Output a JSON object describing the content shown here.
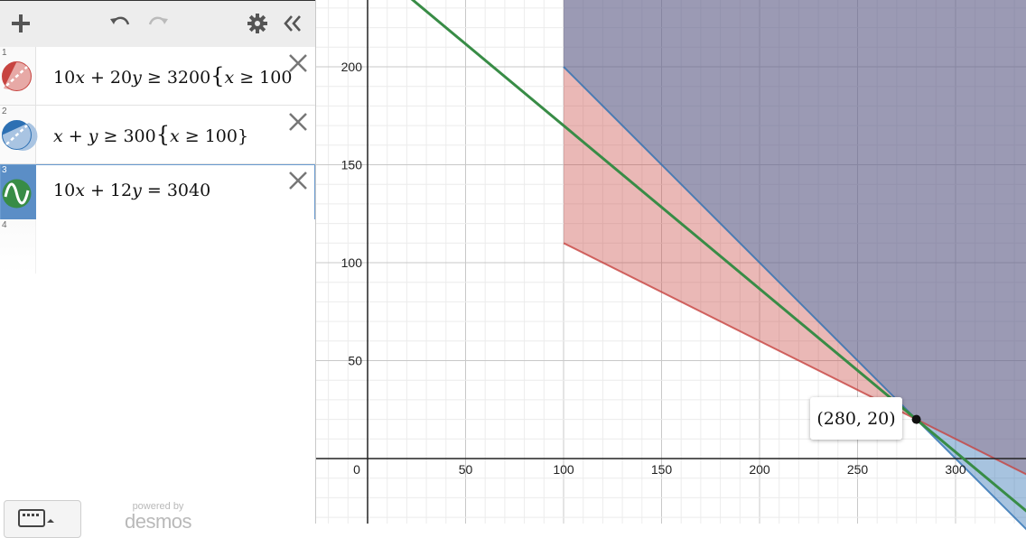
{
  "toolbar": {
    "add_icon": "plus-icon",
    "undo_icon": "undo-icon",
    "redo_icon": "redo-icon",
    "settings_icon": "gear-icon",
    "collapse_icon": "double-chevron-left-icon"
  },
  "expressions": [
    {
      "num": "1",
      "parts": [
        "10",
        "x",
        " + 20",
        "y",
        " ≥ 3200",
        "{",
        "x",
        " ≥ 100"
      ],
      "color": "#c74440",
      "style": "dashed-inequality"
    },
    {
      "num": "2",
      "parts": [
        "",
        "x",
        " + ",
        "y",
        " ≥ 300",
        "{",
        "x",
        " ≥ 100}"
      ],
      "color": "#2d70b3",
      "style": "dashed-inequality"
    },
    {
      "num": "3",
      "parts": [
        "10",
        "x",
        " + 12",
        "y",
        " = 3040",
        "",
        "",
        ""
      ],
      "color": "#388c46",
      "style": "wave-line"
    },
    {
      "num": "4",
      "parts": [
        "",
        "",
        "",
        "",
        "",
        "",
        "",
        ""
      ],
      "color": "",
      "style": "empty"
    }
  ],
  "footer": {
    "keyboard_icon": "keyboard-icon",
    "powered_by": "powered by",
    "brand": "desmos"
  },
  "graph": {
    "x_ticks": [
      "0",
      "50",
      "100",
      "150",
      "200",
      "250",
      "300"
    ],
    "y_ticks": [
      "50",
      "100",
      "150",
      "200"
    ],
    "point_label": "(280, 20)",
    "colors": {
      "red": "#c74440",
      "blue": "#2d70b3",
      "green": "#388c46",
      "purple": "#6b5b95"
    }
  },
  "chart_data": {
    "type": "inequality-plot",
    "x_range": [
      -20,
      345
    ],
    "y_range": [
      -33,
      235
    ],
    "regions": [
      {
        "label": "10x + 20y ≥ 3200 {x ≥ 100}",
        "color": "#c74440"
      },
      {
        "label": "x + y ≥ 300 {x ≥ 100}",
        "color": "#2d70b3"
      }
    ],
    "lines": [
      {
        "label": "10x + 12y = 3040",
        "color": "#388c46"
      }
    ],
    "points": [
      {
        "x": 280,
        "y": 20,
        "label": "(280, 20)"
      }
    ]
  }
}
